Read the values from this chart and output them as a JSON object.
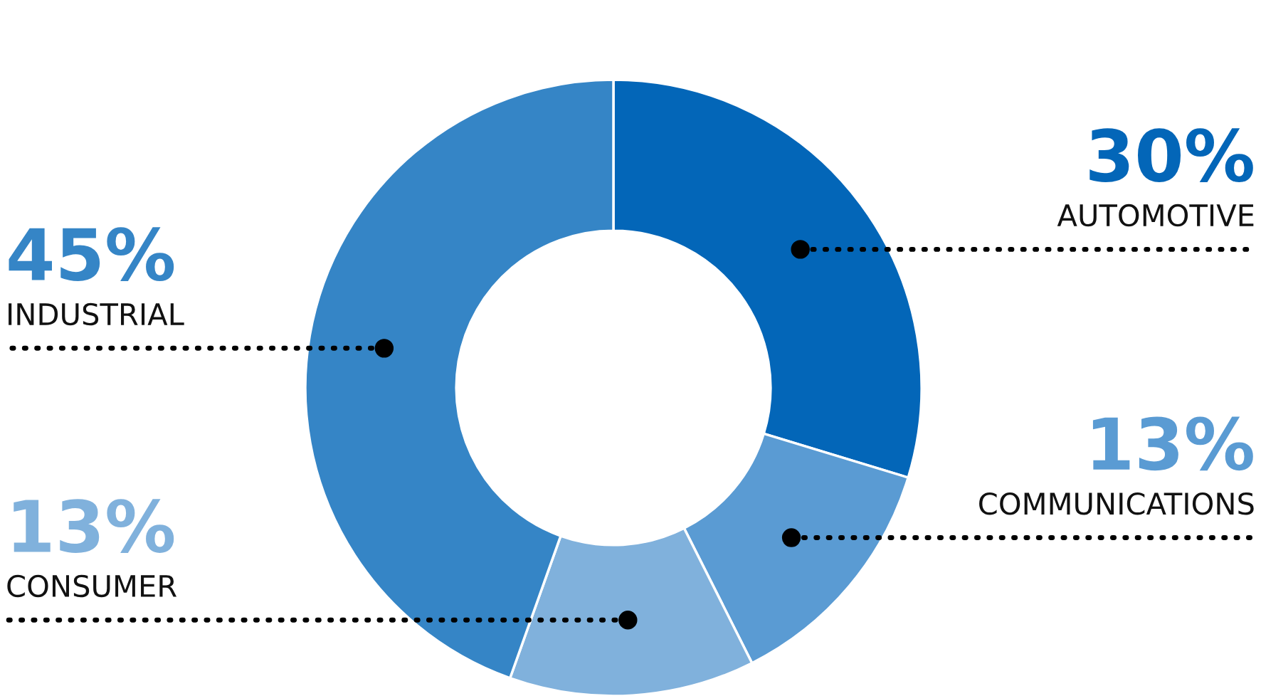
{
  "chart_data": {
    "type": "donut",
    "categories": [
      "AUTOMOTIVE",
      "COMMUNICATIONS",
      "CONSUMER",
      "INDUSTRIAL"
    ],
    "values": [
      30,
      13,
      13,
      45
    ],
    "colors": [
      "#0366b8",
      "#5a9bd3",
      "#80b1dc",
      "#3585c6"
    ],
    "value_labels": [
      "30%",
      "13%",
      "13%",
      "45%"
    ]
  }
}
